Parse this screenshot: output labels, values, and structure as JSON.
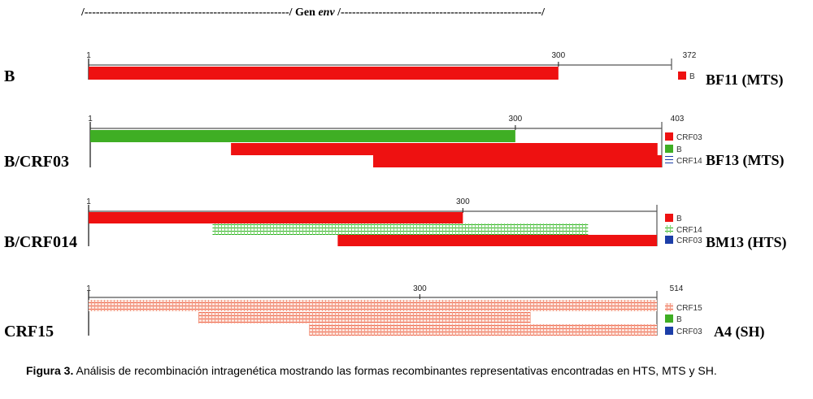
{
  "header": {
    "left": "/------------------------------------------------------/ Gen ",
    "gene": "env",
    "right": " /-----------------------------------------------------/"
  },
  "colors": {
    "B": "#28b01e",
    "CRF03": "#1c3ea8",
    "CRF14_red": "#ee1111",
    "CRF15": "#ef6a50",
    "line": "#333333",
    "axis": "#999999"
  },
  "chart_data": {
    "type": "recombination-diagram",
    "panels": [
      {
        "id": "p1",
        "label": "B",
        "sample": "BF11 (MTS)",
        "length": 372,
        "ticks": [
          {
            "pos": 1,
            "label": "1"
          },
          {
            "pos": 300,
            "label": "300"
          },
          {
            "pos": 372,
            "label": "372"
          }
        ],
        "segments": [
          {
            "row": 0,
            "start": 1,
            "end": 300,
            "fill": "solid",
            "color": "#ee1111"
          }
        ],
        "legend": [
          {
            "label": "B",
            "color": "#ee1111",
            "fill": "solid"
          }
        ]
      },
      {
        "id": "p2",
        "label": "B/CRF03",
        "sample": "BF13 (MTS)",
        "length": 403,
        "ticks": [
          {
            "pos": 1,
            "label": "1"
          },
          {
            "pos": 300,
            "label": "300"
          },
          {
            "pos": 403,
            "label": "403"
          }
        ],
        "segments": [
          {
            "row": 0,
            "start": 1,
            "end": 300,
            "fill": "solid",
            "color": "#3fae24"
          },
          {
            "row": 1,
            "start": 100,
            "end": 400,
            "fill": "solid",
            "color": "#ee1111"
          },
          {
            "row": 2,
            "start": 200,
            "end": 403,
            "fill": "solid",
            "color": "#ee1111"
          }
        ],
        "legend": [
          {
            "label": "CRF03",
            "color": "#ee1111",
            "fill": "solid"
          },
          {
            "label": "B",
            "color": "#3fae24",
            "fill": "solid"
          },
          {
            "label": "CRF14",
            "color": "#1c3ea8",
            "fill": "hatch"
          }
        ]
      },
      {
        "id": "p3",
        "label": "B/CRF014",
        "sample": "BM13 (HTS)",
        "length": 455,
        "ticks": [
          {
            "pos": 1,
            "label": "1"
          },
          {
            "pos": 300,
            "label": "300"
          }
        ],
        "segments": [
          {
            "row": 0,
            "start": 1,
            "end": 300,
            "fill": "solid",
            "color": "#ee1111"
          },
          {
            "row": 1,
            "start": 100,
            "end": 400,
            "fill": "hatch",
            "color": "#28b01e"
          },
          {
            "row": 2,
            "start": 200,
            "end": 455,
            "fill": "solid",
            "color": "#ee1111"
          }
        ],
        "legend": [
          {
            "label": "B",
            "color": "#ee1111",
            "fill": "solid"
          },
          {
            "label": "CRF14",
            "color": "#28b01e",
            "fill": "hatch"
          },
          {
            "label": "CRF03",
            "color": "#1c3ea8",
            "fill": "solid"
          }
        ]
      },
      {
        "id": "p4",
        "label": "CRF15",
        "sample": "A4 (SH)",
        "length": 514,
        "ticks": [
          {
            "pos": 1,
            "label": "1"
          },
          {
            "pos": 300,
            "label": "300"
          },
          {
            "pos": 514,
            "label": "514"
          }
        ],
        "segments": [
          {
            "row": 0,
            "start": 1,
            "end": 514,
            "fill": "hatch",
            "color": "#ef6a50"
          },
          {
            "row": 1,
            "start": 100,
            "end": 400,
            "fill": "hatch",
            "color": "#ef6a50"
          },
          {
            "row": 2,
            "start": 200,
            "end": 514,
            "fill": "hatch",
            "color": "#ef6a50"
          }
        ],
        "legend": [
          {
            "label": "CRF15",
            "color": "#ef6a50",
            "fill": "hatch"
          },
          {
            "label": "B",
            "color": "#3fae24",
            "fill": "solid"
          },
          {
            "label": "CRF03",
            "color": "#1c3ea8",
            "fill": "solid"
          }
        ]
      }
    ]
  },
  "caption": {
    "label": "Figura 3.",
    "text": " Análisis de recombinación intragenética mostrando las formas recombinantes representativas encontradas en HTS, MTS y SH."
  }
}
